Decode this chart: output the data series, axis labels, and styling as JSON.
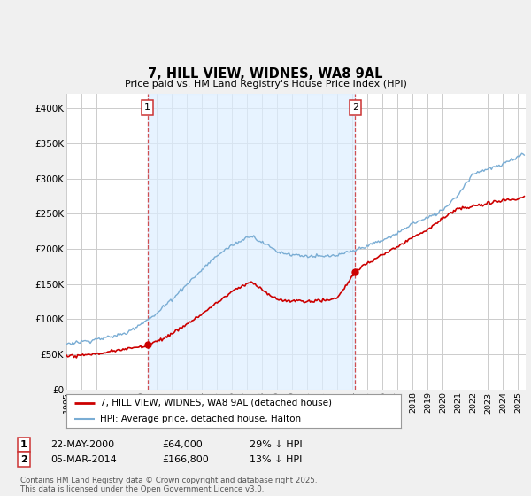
{
  "title": "7, HILL VIEW, WIDNES, WA8 9AL",
  "subtitle": "Price paid vs. HM Land Registry's House Price Index (HPI)",
  "ylim": [
    0,
    420000
  ],
  "yticks": [
    0,
    50000,
    100000,
    150000,
    200000,
    250000,
    300000,
    350000,
    400000
  ],
  "ytick_labels": [
    "£0",
    "£50K",
    "£100K",
    "£150K",
    "£200K",
    "£250K",
    "£300K",
    "£350K",
    "£400K"
  ],
  "xlim_start": 1995,
  "xlim_end": 2025.5,
  "background_color": "#f0f0f0",
  "plot_bg_color": "#ffffff",
  "grid_color": "#cccccc",
  "shade_color": "#ddeeff",
  "legend_label_red": "7, HILL VIEW, WIDNES, WA8 9AL (detached house)",
  "legend_label_blue": "HPI: Average price, detached house, Halton",
  "sale1_year": 2000.38,
  "sale1_price": 64000,
  "sale2_year": 2014.17,
  "sale2_price": 166800,
  "footer": "Contains HM Land Registry data © Crown copyright and database right 2025.\nThis data is licensed under the Open Government Licence v3.0.",
  "table_row1": [
    "1",
    "22-MAY-2000",
    "£64,000",
    "29% ↓ HPI"
  ],
  "table_row2": [
    "2",
    "05-MAR-2014",
    "£166,800",
    "13% ↓ HPI"
  ],
  "red_color": "#cc0000",
  "blue_color": "#7aadd4",
  "vline_color": "#cc3333",
  "box_edge_color": "#cc3333"
}
